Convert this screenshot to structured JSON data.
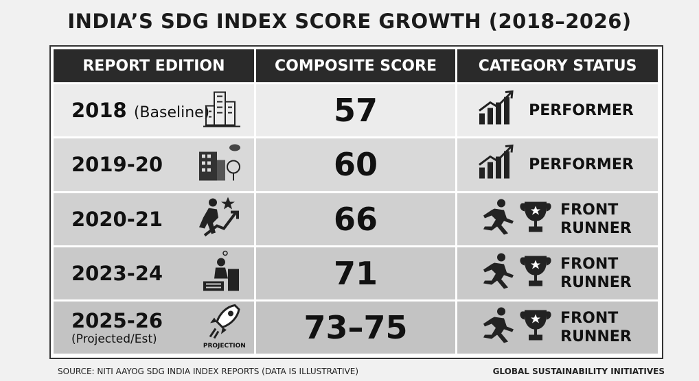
{
  "title": "INDIA’S SDG INDEX SCORE GROWTH (2018–2026)",
  "table": {
    "header": [
      "REPORT EDITION",
      "COMPOSITE SCORE",
      "CATEGORY STATUS"
    ],
    "rows": [
      {
        "edition": "2018",
        "note": "(Baseline)",
        "score": "57",
        "status": "PERFORMER"
      },
      {
        "edition": "2019-20",
        "score": "60",
        "status": "PERFORMER"
      },
      {
        "edition": "2020-21",
        "score": "66",
        "status": "FRONT RUNNER"
      },
      {
        "edition": "2023-24",
        "score": "71",
        "status": "FRONT RUNNER"
      },
      {
        "edition": "2025-26",
        "note": "(Projected/Est)",
        "icon_label": "PROJECTION",
        "score": "73–75",
        "status": "FRONT RUNNER"
      }
    ]
  },
  "footer": {
    "source": "SOURCE: NITI AAYOG SDG INDIA INDEX REPORTS (DATA IS ILLUSTRATIVE)",
    "credit": "GLOBAL SUSTAINABILITY INITIATIVES"
  }
}
